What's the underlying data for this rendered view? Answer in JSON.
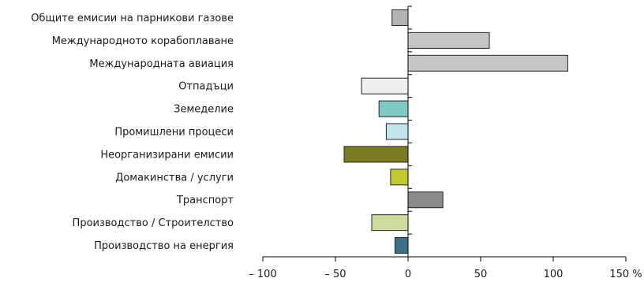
{
  "chart_data": {
    "type": "bar",
    "orientation": "horizontal",
    "categories": [
      "Общите емисии на парникови газове",
      "Международното корабоплаване",
      "Международната авиация",
      "Отпадъци",
      "Земеделие",
      "Промишлени процеси",
      "Неорганизирани емисии",
      "Домакинства / услуги",
      "Транспорт",
      "Производство / Строителство",
      "Производство на енергия"
    ],
    "values": [
      -11,
      56,
      110,
      -32,
      -20,
      -15,
      -44,
      -12,
      24,
      -25,
      -9
    ],
    "colors": [
      "#b3b3b3",
      "#c6c6c6",
      "#c6c6c6",
      "#eef0ee",
      "#7fcac5",
      "#c2e6ee",
      "#7a7b22",
      "#c2c92c",
      "#8a8a8a",
      "#cddc9c",
      "#3f6f86"
    ],
    "xlim": [
      -100,
      150
    ],
    "xticks": [
      -100,
      -50,
      0,
      50,
      100,
      150
    ],
    "xtick_labels": [
      "– 100",
      "– 50",
      "0",
      "50",
      "100",
      "150 %"
    ],
    "title": "",
    "xlabel": "",
    "ylabel": ""
  }
}
